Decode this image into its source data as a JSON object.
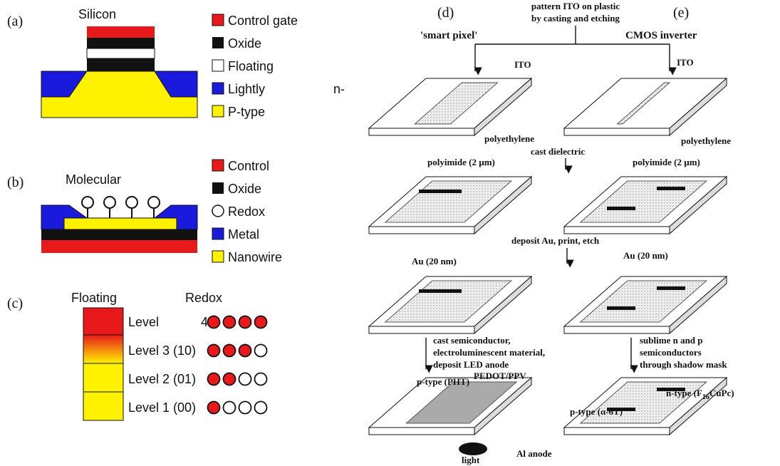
{
  "left": {
    "a": {
      "label": "(a)",
      "title": "Silicon",
      "legend": [
        "Control gate",
        "Oxide",
        "Floating",
        "Lightly",
        "P-type"
      ]
    },
    "b": {
      "label": "(b)",
      "title": "Molecular",
      "legend": [
        "Control",
        "Oxide",
        "Redox",
        "Metal",
        "Nanowire"
      ]
    },
    "c": {
      "label": "(c)",
      "floating": "Floating",
      "redox": "Redox",
      "levels": [
        "Level",
        "Level 3 (10)",
        "Level 2 (01)",
        "Level 1 (00)"
      ],
      "level_4_code": "4"
    },
    "stray": "n-"
  },
  "right": {
    "d": {
      "label": "(d)",
      "title": "'smart pixel'"
    },
    "e": {
      "label": "(e)",
      "title": "CMOS inverter"
    },
    "top": [
      "pattern ITO on plastic",
      "by casting and etching"
    ],
    "ito": [
      "ITO",
      "ITO"
    ],
    "polyethylene": [
      "polyethylene",
      "polyethylene"
    ],
    "cast_dielectric": "cast dielectric",
    "polyimide": [
      "polyimide (2 µm)",
      "polyimide (2 µm)"
    ],
    "deposit": "deposit Au, print, etch",
    "au": [
      "Au (20 nm)",
      "Au (20 nm)"
    ],
    "cast_semi": [
      "cast semiconductor,",
      "electroluminescent material,",
      "deposit LED anode"
    ],
    "sublime": [
      "sublime n and p",
      "semiconductors",
      "through shadow mask"
    ],
    "p_type_pht": "p-type (PHT)",
    "pedot": "PEDOT/PPV",
    "n_type": [
      "n-type (F",
      "16",
      "CuPc)"
    ],
    "p_type_6t": "p-type (α-6T)",
    "al_anode": "Al anode",
    "light": "light"
  }
}
